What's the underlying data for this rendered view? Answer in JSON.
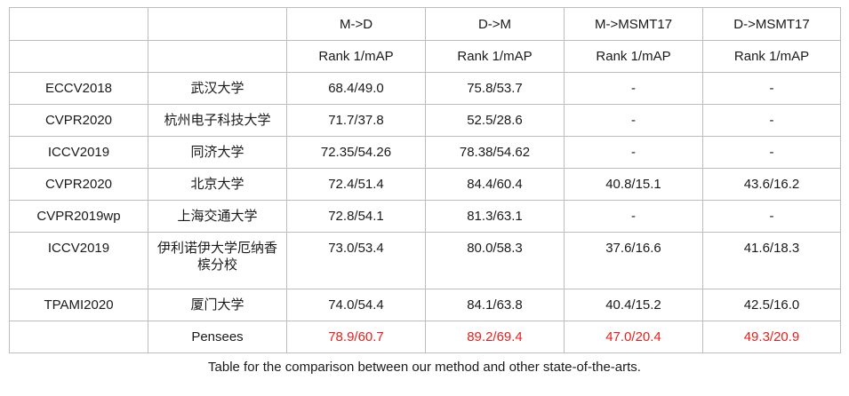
{
  "table": {
    "headers": {
      "row1": [
        "",
        "",
        "M->D",
        "D->M",
        "M->MSMT17",
        "D->MSMT17"
      ],
      "row2": [
        "",
        "",
        "Rank 1/mAP",
        "Rank 1/mAP",
        "Rank 1/mAP",
        "Rank 1/mAP"
      ]
    },
    "rows": [
      [
        "ECCV2018",
        "武汉大学",
        "68.4/49.0",
        "75.8/53.7",
        "-",
        "-"
      ],
      [
        "CVPR2020",
        "杭州电子科技大学",
        "71.7/37.8",
        "52.5/28.6",
        "-",
        "-"
      ],
      [
        "ICCV2019",
        "同济大学",
        "72.35/54.26",
        "78.38/54.62",
        "-",
        "-"
      ],
      [
        "CVPR2020",
        "北京大学",
        "72.4/51.4",
        "84.4/60.4",
        "40.8/15.1",
        "43.6/16.2"
      ],
      [
        "CVPR2019wp",
        "上海交通大学",
        "72.8/54.1",
        "81.3/63.1",
        "-",
        "-"
      ],
      [
        "ICCV2019",
        "伊利诺伊大学厄纳香槟分校",
        "73.0/53.4",
        "80.0/58.3",
        "37.6/16.6",
        "41.6/18.3"
      ],
      [
        "TPAMI2020",
        "厦门大学",
        "74.0/54.4",
        "84.1/63.8",
        "40.4/15.2",
        "42.5/16.0"
      ],
      [
        "",
        "Pensees",
        "78.9/60.7",
        "89.2/69.4",
        "47.0/20.4",
        "49.3/20.9"
      ]
    ],
    "highlight_color": "#e8201c"
  },
  "caption": "Table for the comparison between our method and other state-of-the-arts."
}
